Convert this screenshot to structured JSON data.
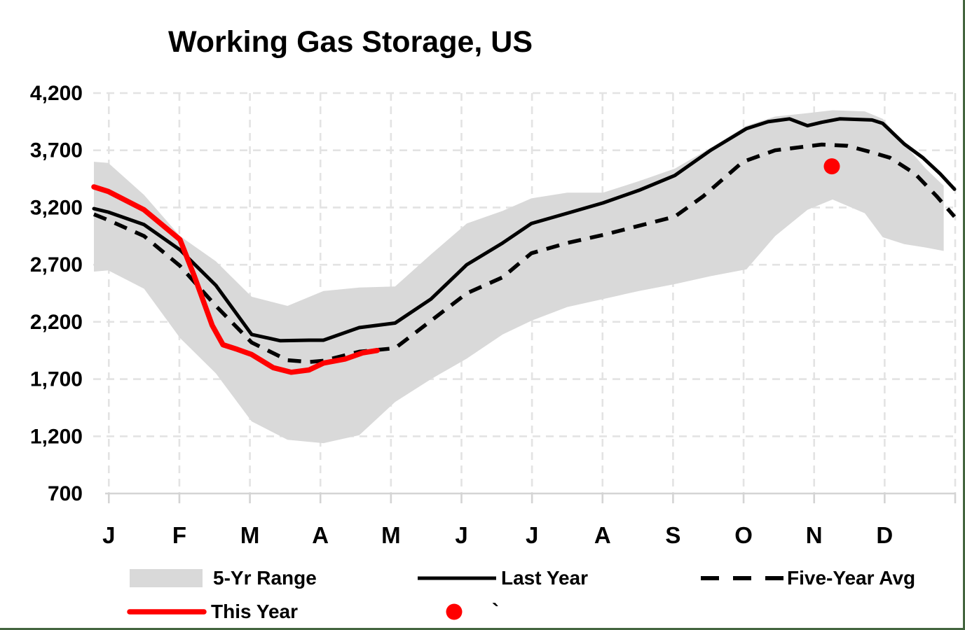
{
  "title": "Working Gas Storage, US",
  "colors": {
    "range_fill": "#D9D9D9",
    "last_year": "#000000",
    "five_year_avg": "#000000",
    "this_year": "#FF0000",
    "marker_dot": "#FF0000",
    "gridline": "#E3E3E3",
    "axis_line": "#D4D4D4",
    "frame_border": "#43653F",
    "text": "#000000"
  },
  "chart_data": {
    "type": "line",
    "title": "Working Gas Storage, US",
    "xlabel": "",
    "ylabel": "",
    "ylim": [
      700,
      4200
    ],
    "grid": "dashed",
    "legend_position": "bottom",
    "x_tick_labels": [
      "J",
      "F",
      "M",
      "A",
      "M",
      "J",
      "J",
      "A",
      "S",
      "O",
      "N",
      "D"
    ],
    "y_ticks": [
      {
        "value": 4200,
        "label": "4,200"
      },
      {
        "value": 3700,
        "label": "3,700"
      },
      {
        "value": 3200,
        "label": "3,200"
      },
      {
        "value": 2700,
        "label": "2,700"
      },
      {
        "value": 2200,
        "label": "2,200"
      },
      {
        "value": 1700,
        "label": "1,700"
      },
      {
        "value": 1200,
        "label": "1,200"
      },
      {
        "value": 700,
        "label": "700"
      }
    ],
    "y_gridline_values": [
      1200,
      1700,
      2200,
      2700,
      3200,
      3700,
      4200
    ],
    "series": [
      {
        "name": "5-Yr Range",
        "type": "band",
        "m": [
          0,
          0.2,
          0.7,
          1.2,
          1.7,
          2.2,
          2.7,
          3.2,
          3.7,
          4.2,
          4.7,
          5.2,
          5.7,
          6.1,
          6.6,
          7.1,
          7.6,
          8.1,
          8.6,
          9.1,
          9.5,
          9.95,
          10.3,
          10.75,
          11.0,
          11.3,
          11.6,
          11.85
        ],
        "top": [
          3600,
          3590,
          3310,
          2950,
          2730,
          2420,
          2340,
          2470,
          2500,
          2510,
          2790,
          3060,
          3170,
          3280,
          3330,
          3330,
          3430,
          3540,
          3720,
          3915,
          3995,
          4025,
          4050,
          4040,
          3975,
          3755,
          3540,
          3390
        ],
        "bottom": [
          2640,
          2650,
          2490,
          2060,
          1750,
          1330,
          1170,
          1140,
          1210,
          1500,
          1700,
          1880,
          2090,
          2210,
          2330,
          2400,
          2470,
          2530,
          2600,
          2660,
          2950,
          3180,
          3270,
          3150,
          2940,
          2880,
          2850,
          2820
        ]
      },
      {
        "name": "Last Year",
        "type": "line",
        "dash": "solid",
        "color": "black",
        "m": [
          0,
          0.2,
          0.7,
          1.2,
          1.7,
          2.2,
          2.6,
          3.0,
          3.2,
          3.7,
          4.2,
          4.7,
          5.2,
          5.7,
          6.1,
          6.6,
          7.1,
          7.6,
          8.1,
          8.6,
          9.1,
          9.4,
          9.7,
          9.95,
          10.15,
          10.4,
          10.85,
          11.0,
          11.3,
          11.56,
          11.8,
          12.0
        ],
        "values": [
          3190,
          3160,
          3050,
          2830,
          2520,
          2090,
          2035,
          2040,
          2040,
          2150,
          2190,
          2400,
          2700,
          2890,
          3060,
          3150,
          3240,
          3350,
          3480,
          3700,
          3890,
          3950,
          3975,
          3915,
          3945,
          3975,
          3965,
          3935,
          3755,
          3635,
          3495,
          3360
        ]
      },
      {
        "name": "Five-Year Avg",
        "type": "line",
        "dash": "dashed",
        "color": "black",
        "m": [
          0,
          0.2,
          0.7,
          1.2,
          1.7,
          2.2,
          2.7,
          3.0,
          3.2,
          3.7,
          4.2,
          4.7,
          5.2,
          5.7,
          6.1,
          6.6,
          7.1,
          7.6,
          8.1,
          8.5,
          9.05,
          9.5,
          10.15,
          10.5,
          10.8,
          11.1,
          11.45,
          11.75,
          12.0
        ],
        "values": [
          3140,
          3090,
          2950,
          2690,
          2340,
          2020,
          1865,
          1850,
          1860,
          1940,
          1970,
          2210,
          2450,
          2590,
          2800,
          2890,
          2960,
          3040,
          3120,
          3300,
          3600,
          3700,
          3750,
          3740,
          3690,
          3635,
          3495,
          3300,
          3120
        ]
      },
      {
        "name": "This Year",
        "type": "line",
        "dash": "solid",
        "color": "red",
        "m": [
          0,
          0.2,
          0.7,
          1.2,
          1.4,
          1.65,
          1.8,
          2.0,
          2.2,
          2.5,
          2.75,
          3.0,
          3.2,
          3.5,
          3.75,
          3.95
        ],
        "values": [
          3380,
          3340,
          3180,
          2920,
          2600,
          2170,
          2000,
          1960,
          1915,
          1800,
          1760,
          1780,
          1840,
          1875,
          1930,
          1950
        ]
      },
      {
        "name": "November marker",
        "type": "point",
        "color": "red",
        "m": 10.29,
        "value": 3560
      }
    ]
  },
  "legend": {
    "items": [
      {
        "label": "5-Yr Range",
        "swatch": "area"
      },
      {
        "label": "Last Year",
        "swatch": "solid-line"
      },
      {
        "label": "Five-Year Avg",
        "swatch": "dashed-line"
      },
      {
        "label": "This Year",
        "swatch": "red-line"
      },
      {
        "label": "`",
        "swatch": "red-dot"
      }
    ]
  }
}
